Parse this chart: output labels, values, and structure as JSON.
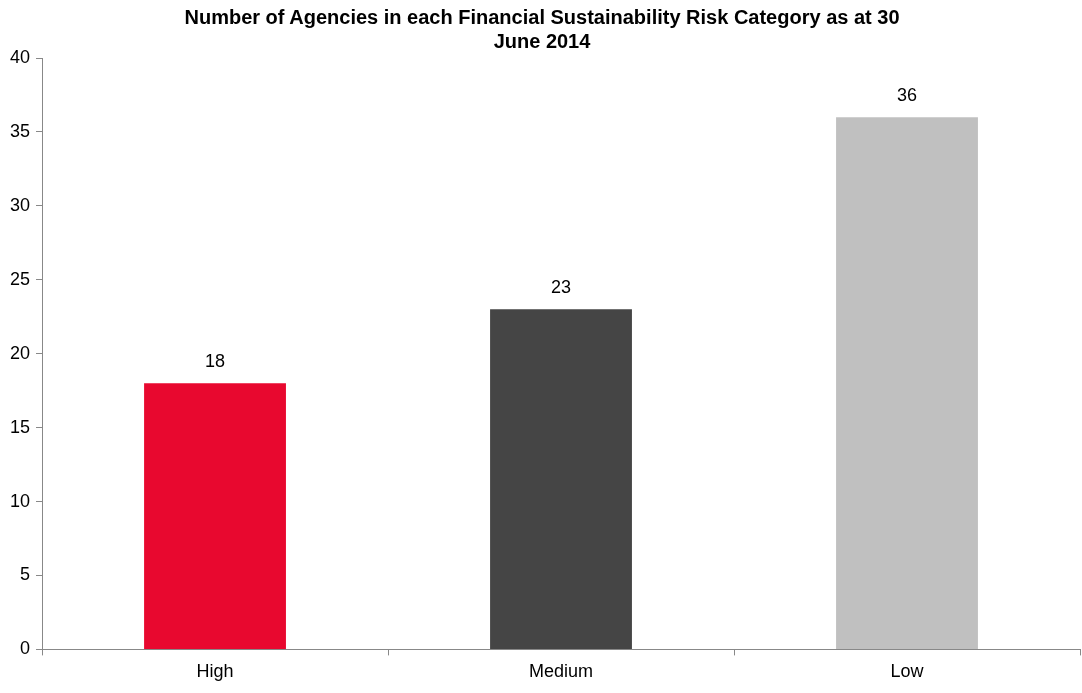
{
  "chart_data": {
    "type": "bar",
    "title": "Number of Agencies in each Financial Sustainability Risk Category as at 30 June 2014",
    "categories": [
      "High",
      "Medium",
      "Low"
    ],
    "values": [
      18,
      23,
      36
    ],
    "colors": [
      "#e8082f",
      "#454545",
      "#c0c0c0"
    ],
    "ylim": [
      0,
      40
    ],
    "yticks": [
      0,
      5,
      10,
      15,
      20,
      25,
      30,
      35,
      40
    ],
    "grid": false,
    "legend": false,
    "data_labels": true
  }
}
